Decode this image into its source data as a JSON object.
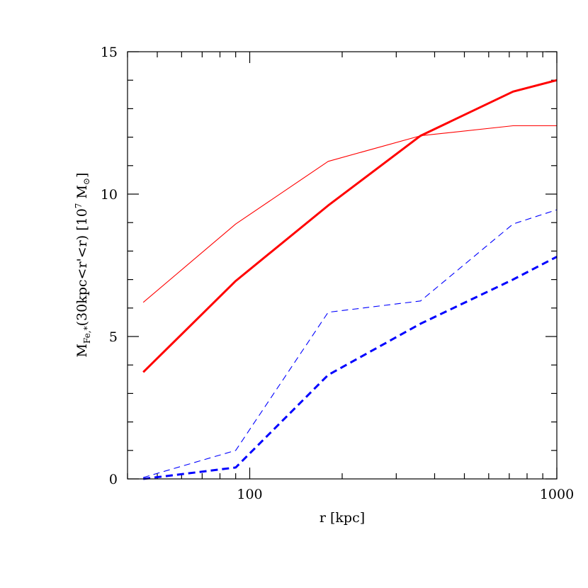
{
  "chart_data": {
    "type": "line",
    "xlabel": "r [kpc]",
    "ylabel": {
      "base": "M",
      "sub": "Fe,*",
      "mid": "(30kpc<r'<r) [10",
      "sup": "7",
      "tail": " M",
      "sun": "⊙",
      "close": "]"
    },
    "xscale": "log",
    "xlim": [
      40,
      1000
    ],
    "ylim": [
      0,
      15
    ],
    "x_major_ticks": [
      100,
      1000
    ],
    "x_tick_labels": [
      "100",
      "1000"
    ],
    "x_minor_ticks": [
      40,
      50,
      60,
      70,
      80,
      90,
      200,
      300,
      400,
      500,
      600,
      700,
      800,
      900
    ],
    "y_major_ticks": [
      0,
      5,
      10,
      15
    ],
    "y_tick_labels": [
      "0",
      "5",
      "10",
      "15"
    ],
    "y_minor_ticks": [
      1,
      2,
      3,
      4,
      6,
      7,
      8,
      9,
      11,
      12,
      13,
      14
    ],
    "grid": false,
    "series": [
      {
        "color": "#ff0000",
        "style": "solid",
        "weight": "thick",
        "x": [
          45,
          90,
          180,
          360,
          720,
          1000
        ],
        "values": [
          3.75,
          6.95,
          9.6,
          12.05,
          13.6,
          14.0
        ]
      },
      {
        "color": "#ff0000",
        "style": "solid",
        "weight": "thin",
        "x": [
          45,
          90,
          180,
          360,
          720,
          1000
        ],
        "values": [
          6.2,
          8.95,
          11.15,
          12.05,
          12.4,
          12.4
        ]
      },
      {
        "color": "#0000ff",
        "style": "dashed",
        "weight": "thick",
        "x": [
          45,
          90,
          180,
          360,
          720,
          1000
        ],
        "values": [
          0.0,
          0.4,
          3.65,
          5.45,
          7.0,
          7.8
        ]
      },
      {
        "color": "#0000ff",
        "style": "dashed",
        "weight": "thin",
        "x": [
          45,
          90,
          180,
          360,
          720,
          1000
        ],
        "values": [
          0.05,
          1.0,
          5.85,
          6.25,
          8.95,
          9.45
        ]
      }
    ]
  }
}
